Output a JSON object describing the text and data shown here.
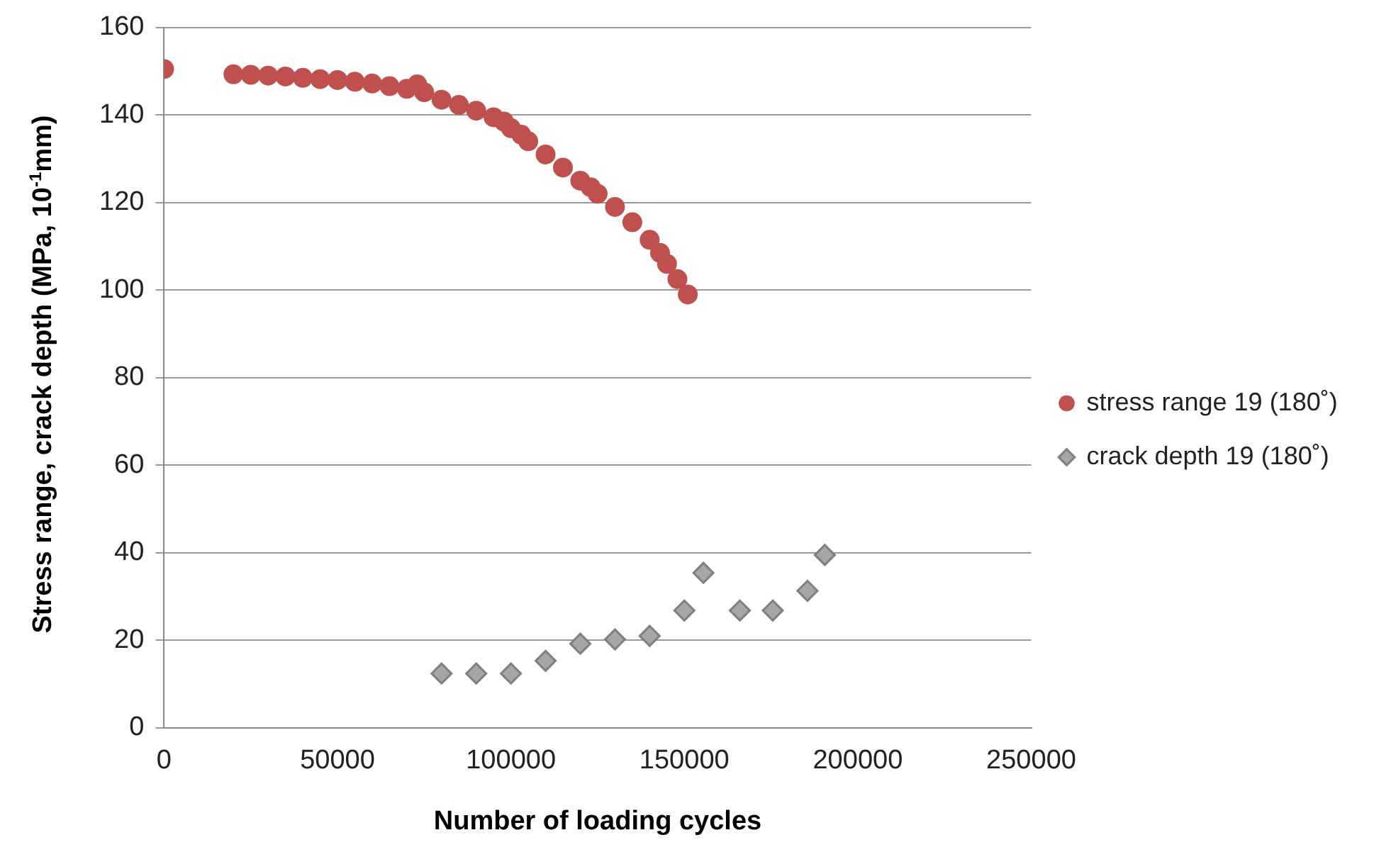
{
  "chart_data": {
    "type": "scatter",
    "xlabel": "Number of loading cycles",
    "ylabel": "Stress range, crack depth (MPa, 10$^{-1}$mm)",
    "xlim": [
      0,
      250000
    ],
    "xticks": [
      0,
      50000,
      100000,
      150000,
      200000,
      250000
    ],
    "ylim": [
      0,
      160
    ],
    "yticks": [
      0,
      20,
      40,
      60,
      80,
      100,
      120,
      140,
      160
    ],
    "grid": "y",
    "legend": "right",
    "series": [
      {
        "name": "stress range 19 (180˚)",
        "color": "#c0504d",
        "marker": "circle",
        "x": [
          0,
          20000,
          25000,
          30000,
          35000,
          40000,
          45000,
          50000,
          55000,
          60000,
          65000,
          70000,
          73000,
          75000,
          80000,
          85000,
          90000,
          95000,
          98000,
          100000,
          103000,
          105000,
          110000,
          115000,
          120000,
          123000,
          125000,
          130000,
          135000,
          140000,
          143000,
          145000,
          148000,
          151000
        ],
        "values": [
          150.5,
          149.3,
          149.2,
          149,
          148.8,
          148.5,
          148.2,
          148,
          147.6,
          147.2,
          146.6,
          146,
          147,
          145.2,
          143.5,
          142.3,
          141,
          139.5,
          138.5,
          137,
          135.5,
          134,
          131,
          128,
          125,
          123.5,
          122,
          119,
          115.5,
          111.5,
          108.5,
          106,
          102.5,
          99
        ]
      },
      {
        "name": "crack depth 19 (180˚)",
        "color": "#a6a6a6",
        "marker": "diamond",
        "x": [
          80000,
          90000,
          100000,
          110000,
          120000,
          130000,
          140000,
          150000,
          155500,
          166000,
          175500,
          185500,
          190500
        ],
        "values": [
          12.4,
          12.4,
          12.4,
          15.3,
          19.2,
          20.2,
          21,
          26.8,
          35.4,
          26.8,
          26.8,
          31.3,
          39.5
        ]
      }
    ]
  }
}
